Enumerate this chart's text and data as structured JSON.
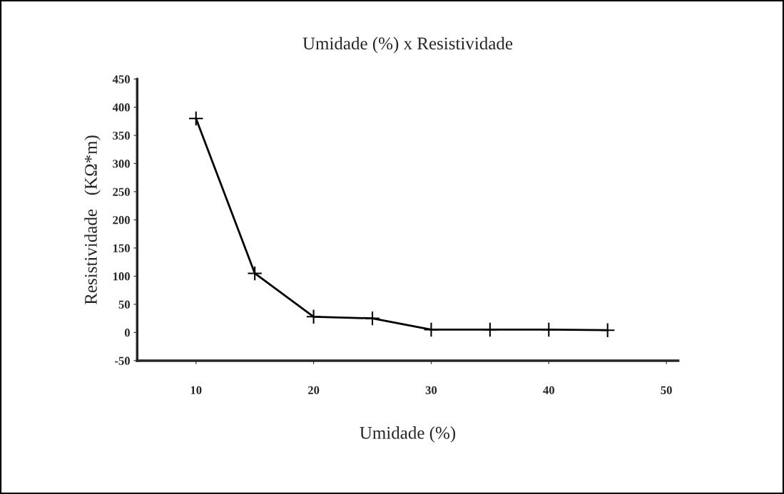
{
  "chart_data": {
    "type": "line",
    "title": "Umidade (%) x Resistividade",
    "xlabel": "Umidade (%)",
    "ylabel": "Resistividade   (KΩ*m)",
    "x": [
      10,
      15,
      20,
      25,
      30,
      35,
      40,
      45
    ],
    "series": [
      {
        "color": "#000000",
        "values": [
          380,
          105,
          28,
          25,
          5,
          5,
          5,
          4
        ]
      }
    ],
    "marker": "cross",
    "line_style": "solid",
    "grid": false,
    "xlim": [
      5,
      51
    ],
    "xticks": [
      10,
      20,
      30,
      40,
      50
    ],
    "ylim": [
      -50,
      450
    ],
    "yticks": [
      -50,
      0,
      50,
      100,
      150,
      200,
      250,
      300,
      350,
      400,
      450
    ]
  }
}
